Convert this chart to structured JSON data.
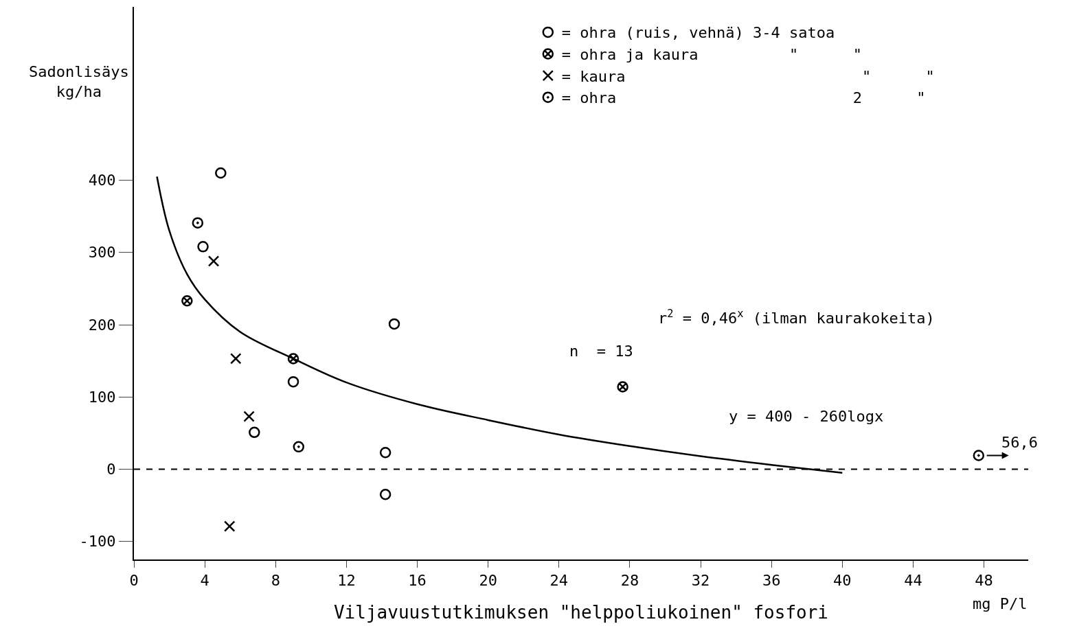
{
  "chart_data": {
    "type": "scatter",
    "xlabel": "Viljavuustutkimuksen \"helppoliukoinen\" fosfori",
    "ylabel": "Sadonlisäys\nkg/ha",
    "xlim": [
      0,
      50.5
    ],
    "ylim": [
      -125,
      640
    ],
    "xticks": [
      0,
      4,
      8,
      12,
      16,
      20,
      24,
      28,
      32,
      36,
      40,
      44,
      48
    ],
    "yticks": [
      -100,
      0,
      100,
      200,
      300,
      400
    ],
    "legend": "top right",
    "series": [
      {
        "name": "= ohra (ruis, vehnä) 3-4 satoa",
        "color": "#000000",
        "marker": "circle",
        "x": [
          4.9,
          3.9,
          9.0,
          6.8,
          14.7,
          14.2,
          14.2
        ],
        "values": [
          410,
          308,
          121,
          51,
          201,
          23,
          -35
        ]
      },
      {
        "name": "= ohra ja kaura          \"      \"",
        "color": "#000000",
        "marker": "cross",
        "x": [
          3.0,
          9.0,
          27.6
        ],
        "values": [
          233,
          153,
          114
        ]
      },
      {
        "name": "= kaura                          \"      \"",
        "color": "#000000",
        "marker": "cross",
        "x": [
          4.5,
          5.75,
          6.5,
          5.4
        ],
        "values": [
          288,
          153,
          73,
          -79
        ]
      },
      {
        "name": "= ohra                          2      \"",
        "color": "#000000",
        "marker": "circle",
        "x": [
          3.6,
          9.3,
          47.7
        ],
        "values": [
          341,
          31,
          19
        ]
      },
      {
        "type": "line",
        "color": "#000000",
        "line_style": "solid",
        "marker": "none",
        "x": [
          1.3,
          2,
          3,
          4,
          6,
          9,
          12,
          16,
          20,
          24,
          28,
          32,
          36,
          40
        ],
        "values": [
          405,
          330,
          270,
          235,
          190,
          153,
          120,
          90,
          68,
          48,
          32,
          18,
          6,
          -5
        ]
      }
    ],
    "ref_lines": [
      {
        "axis": "y",
        "value": 0,
        "color": "#000000",
        "line_style": "dashed"
      }
    ],
    "annotations": [
      "r$^{2}$ = 0,46$^{x}$ (ilman kaurakokeita)",
      "n  = 13",
      "y = 400 - 260logx",
      {
        "text": "56,6",
        "x": 47.7,
        "y": 19
      },
      "mg P/l"
    ]
  }
}
